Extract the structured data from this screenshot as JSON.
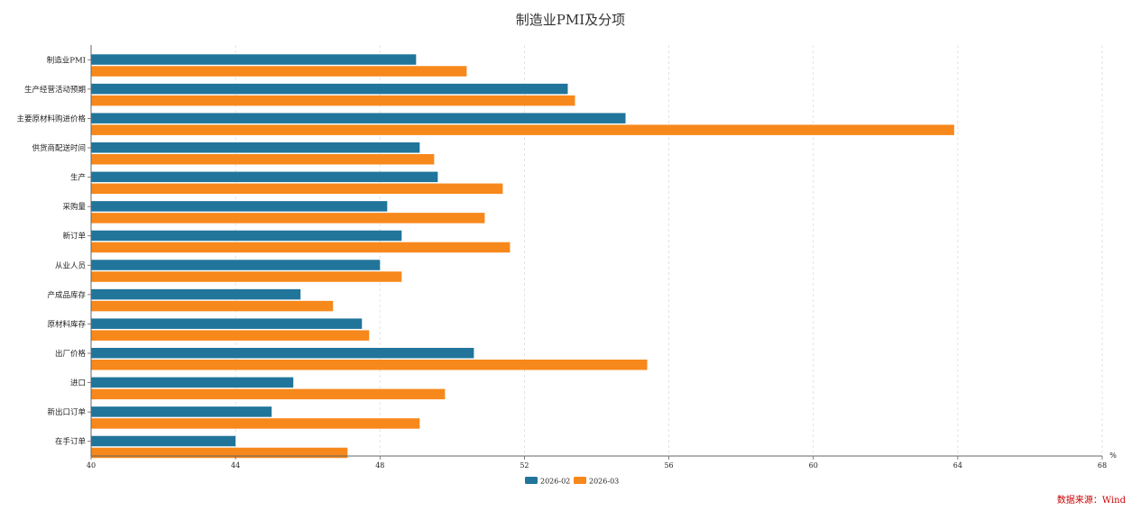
{
  "chart_data": {
    "type": "bar",
    "orientation": "horizontal",
    "title": "制造业PMI及分项",
    "categories": [
      "制造业PMI",
      "生产经营活动预期",
      "主要原材料购进价格",
      "供货商配送时间",
      "生产",
      "采购量",
      "新订单",
      "从业人员",
      "产成品库存",
      "原材料库存",
      "出厂价格",
      "进口",
      "新出口订单",
      "在手订单"
    ],
    "series": [
      {
        "name": "2026-02",
        "color": "#21759b",
        "values": [
          49.0,
          53.2,
          54.8,
          49.1,
          49.6,
          48.2,
          48.6,
          48.0,
          45.8,
          47.5,
          50.6,
          45.6,
          45.0,
          44.0
        ]
      },
      {
        "name": "2026-03",
        "color": "#f7881b",
        "values": [
          50.4,
          53.4,
          63.9,
          49.5,
          51.4,
          50.9,
          51.6,
          48.6,
          46.7,
          47.7,
          55.4,
          49.8,
          49.1,
          47.1
        ]
      }
    ],
    "xlim": [
      40,
      68
    ],
    "xticks": [
      "40",
      "44",
      "48",
      "52",
      "56",
      "60",
      "64",
      "68"
    ],
    "xunit": "%",
    "grid": true,
    "legend": "bottom-center"
  },
  "source_note": "数据来源：Wind"
}
